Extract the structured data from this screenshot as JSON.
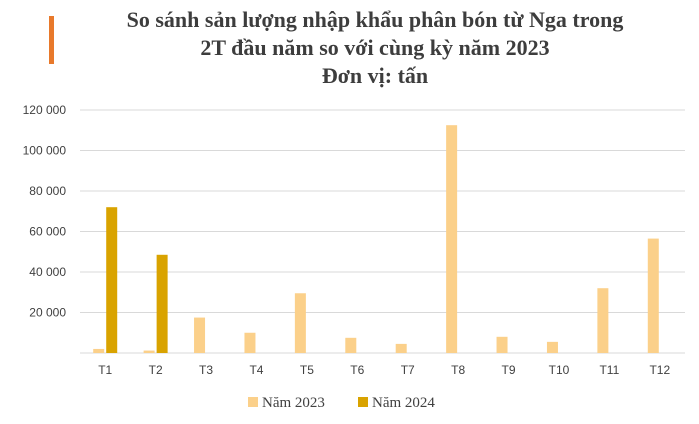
{
  "chart_data": {
    "type": "bar",
    "title_lines": [
      "So sánh sản lượng nhập khẩu phân bón từ Nga trong",
      "2T đầu năm so với cùng kỳ năm 2023",
      "Đơn vị: tấn"
    ],
    "categories": [
      "T1",
      "T2",
      "T3",
      "T4",
      "T5",
      "T6",
      "T7",
      "T8",
      "T9",
      "T10",
      "T11",
      "T12"
    ],
    "series": [
      {
        "name": "Năm 2023",
        "color": "#FBD08A",
        "values": [
          2000,
          1200,
          17500,
          10000,
          29500,
          7500,
          4500,
          112500,
          8000,
          5500,
          32000,
          56500
        ]
      },
      {
        "name": "Năm 2024",
        "color": "#D9A300",
        "values": [
          72000,
          48500,
          null,
          null,
          null,
          null,
          null,
          null,
          null,
          null,
          null,
          null
        ]
      }
    ],
    "ylim": [
      0,
      120000
    ],
    "yticks": [
      20000,
      40000,
      60000,
      80000,
      100000,
      120000
    ],
    "ytick_labels": [
      "20 000",
      "40 000",
      "60 000",
      "80 000",
      "100 000",
      "120 000"
    ],
    "grid": true,
    "legend_position": "bottom"
  },
  "colors": {
    "accent": "#E8792B",
    "grid": "#D9D9D9"
  }
}
